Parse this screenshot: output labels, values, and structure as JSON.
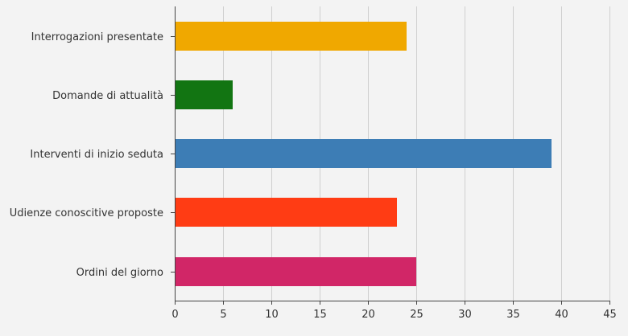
{
  "chart_data": {
    "type": "bar",
    "orientation": "horizontal",
    "title": "",
    "xlabel": "",
    "ylabel": "",
    "categories": [
      "Interrogazioni presentate",
      "Domande di attualità",
      "Interventi di inizio seduta",
      "Udienze conoscitive proposte",
      "Ordini del giorno"
    ],
    "values": [
      24,
      6,
      39,
      23,
      25
    ],
    "colors": [
      "#f0a800",
      "#127512",
      "#3d7db5",
      "#ff3c14",
      "#d12667"
    ],
    "xlim": [
      0,
      45
    ],
    "xticks": [
      0,
      5,
      10,
      15,
      20,
      25,
      30,
      35,
      40,
      45
    ],
    "grid": "vertical",
    "legend": "none"
  }
}
